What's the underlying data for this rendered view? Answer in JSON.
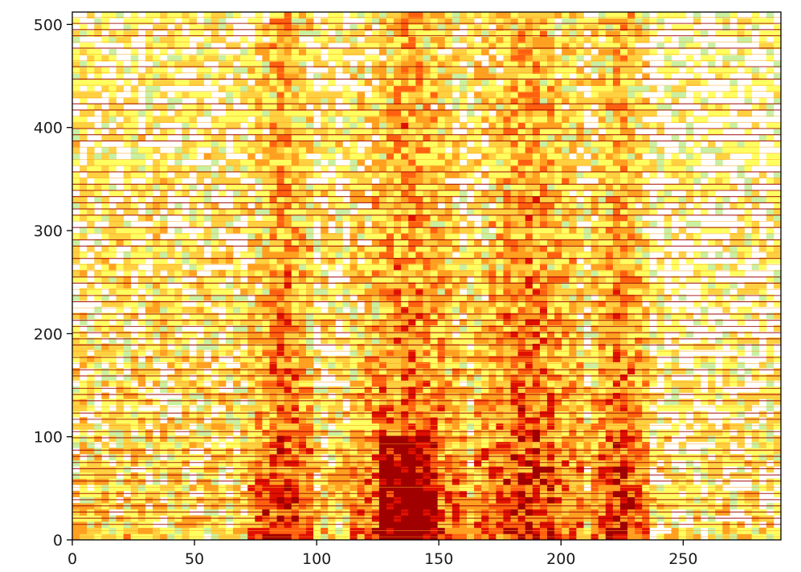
{
  "chart_data": {
    "type": "heatmap",
    "title": "",
    "xlabel": "",
    "ylabel": "",
    "xlim": [
      0,
      290
    ],
    "ylim": [
      0,
      512
    ],
    "x_ticks": [
      0,
      50,
      100,
      150,
      200,
      250
    ],
    "y_ticks": [
      0,
      100,
      200,
      300,
      400,
      500
    ],
    "x_tick_labels": [
      "0",
      "50",
      "100",
      "150",
      "200",
      "250"
    ],
    "y_tick_labels": [
      "0",
      "100",
      "200",
      "300",
      "400",
      "500"
    ],
    "grid": false,
    "legend": "none",
    "colormap": [
      "#ffffff",
      "#c8f0a0",
      "#ffff60",
      "#ffd040",
      "#ffa020",
      "#ff6010",
      "#e01000",
      "#a00000"
    ],
    "summary": {
      "high_intensity_columns": [
        [
          73,
          100
        ],
        [
          115,
          160
        ],
        [
          163,
          210
        ],
        [
          213,
          235
        ]
      ],
      "strongest_region": {
        "x": [
          125,
          150
        ],
        "y": [
          0,
          100
        ]
      },
      "horizontal_banding": true
    }
  }
}
